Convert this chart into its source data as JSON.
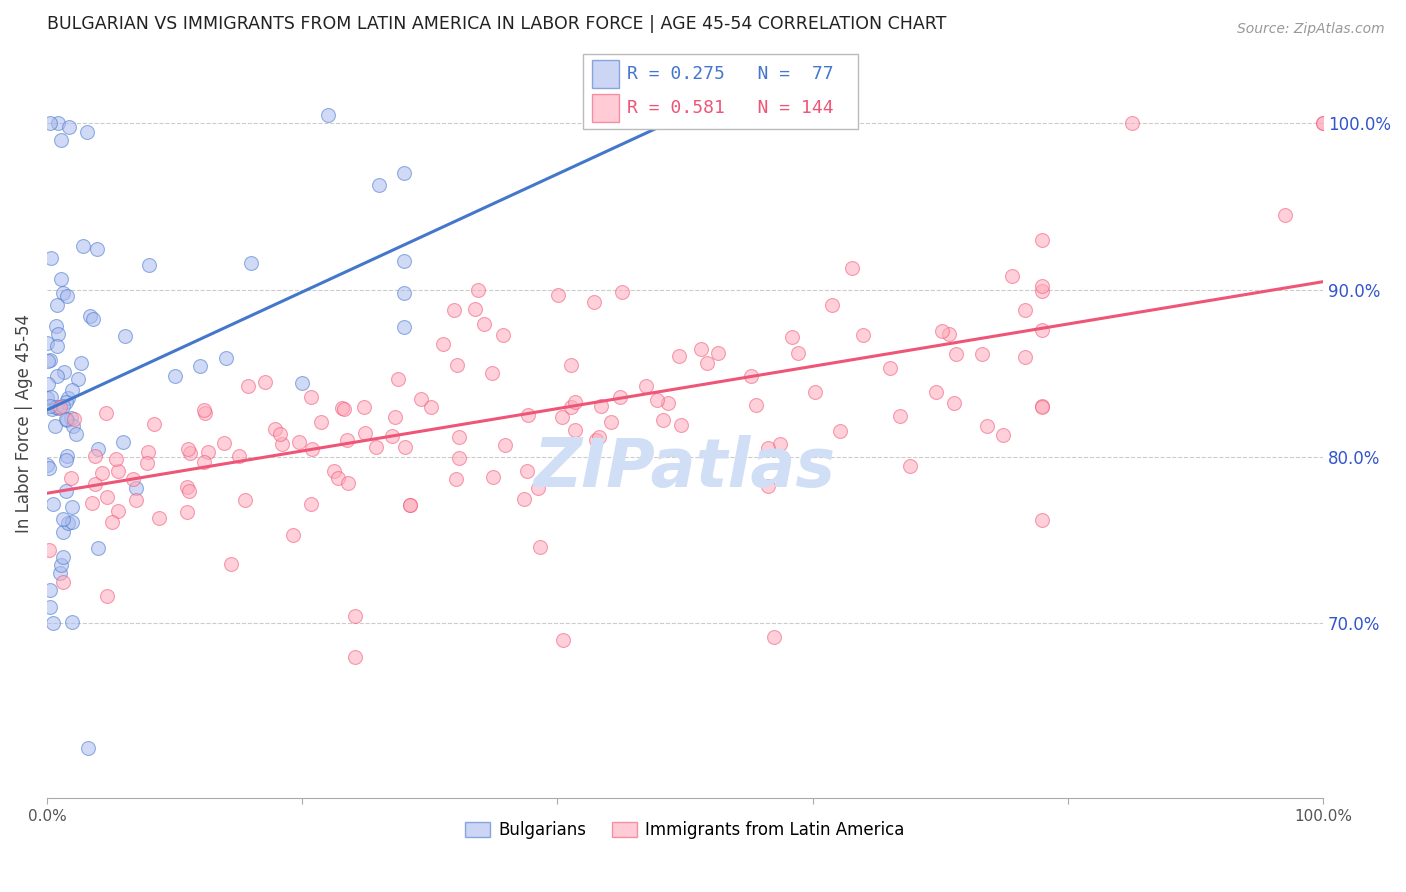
{
  "title": "BULGARIAN VS IMMIGRANTS FROM LATIN AMERICA IN LABOR FORCE | AGE 45-54 CORRELATION CHART",
  "source": "Source: ZipAtlas.com",
  "ylabel": "In Labor Force | Age 45-54",
  "right_ytick_labels": [
    "70.0%",
    "80.0%",
    "90.0%",
    "100.0%"
  ],
  "right_ytick_values": [
    0.7,
    0.8,
    0.9,
    1.0
  ],
  "xlim": [
    0.0,
    1.0
  ],
  "ylim": [
    0.595,
    1.045
  ],
  "blue_R": 0.275,
  "blue_N": 77,
  "pink_R": 0.581,
  "pink_N": 144,
  "blue_color": "#aabbee",
  "pink_color": "#ffaabb",
  "blue_line_color": "#4477cc",
  "pink_line_color": "#ee5577",
  "legend_label_blue": "Bulgarians",
  "legend_label_pink": "Immigrants from Latin America",
  "title_color": "#222222",
  "right_axis_color": "#3355cc",
  "grid_color": "#cccccc",
  "watermark": "ZIPatlas",
  "watermark_color": "#d0dff5",
  "blue_line_x0": 0.0,
  "blue_line_y0": 0.828,
  "blue_line_x1": 0.5,
  "blue_line_y1": 1.005,
  "pink_line_x0": 0.0,
  "pink_line_y0": 0.778,
  "pink_line_x1": 1.0,
  "pink_line_y1": 0.905
}
